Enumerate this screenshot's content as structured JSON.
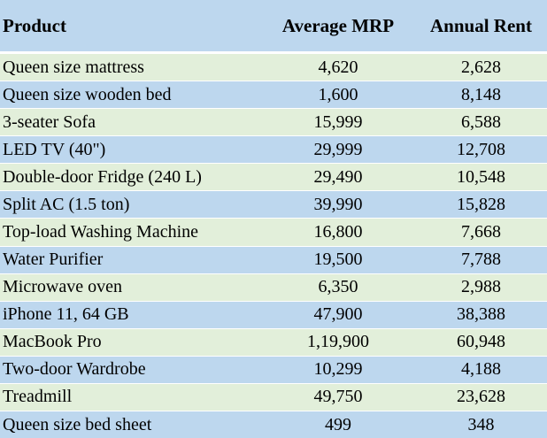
{
  "chart_data": {
    "type": "table",
    "title": "",
    "columns": [
      "Product",
      "Average MRP",
      "Annual Rent"
    ],
    "rows": [
      [
        "Queen size mattress",
        "4,620",
        "2,628"
      ],
      [
        "Queen size wooden bed",
        "1,600",
        "8,148"
      ],
      [
        "3-seater Sofa",
        "15,999",
        "6,588"
      ],
      [
        "LED TV (40\")",
        "29,999",
        "12,708"
      ],
      [
        "Double-door Fridge (240 L)",
        "29,490",
        "10,548"
      ],
      [
        "Split AC (1.5 ton)",
        "39,990",
        "15,828"
      ],
      [
        "Top-load Washing Machine",
        "16,800",
        "7,668"
      ],
      [
        "Water Purifier",
        "19,500",
        "7,788"
      ],
      [
        "Microwave oven",
        "6,350",
        "2,988"
      ],
      [
        "iPhone 11, 64 GB",
        "47,900",
        "38,388"
      ],
      [
        "MacBook Pro",
        "1,19,900",
        "60,948"
      ],
      [
        "Two-door Wardrobe",
        "10,299",
        "4,188"
      ],
      [
        "Treadmill",
        "49,750",
        "23,628"
      ],
      [
        "Queen size bed sheet",
        "499",
        "348"
      ]
    ],
    "layout_hints": {
      "header_background": "blue",
      "row_stripe_order": [
        "green",
        "blue"
      ],
      "numeric_columns_alignment": "center",
      "product_column_alignment": "left"
    }
  },
  "colors": {
    "header_bg": "#BDD7EE",
    "row_blue": "#BDD7EE",
    "row_green": "#E2EFDA",
    "separator": "#FFFFFF",
    "text": "#000000"
  }
}
